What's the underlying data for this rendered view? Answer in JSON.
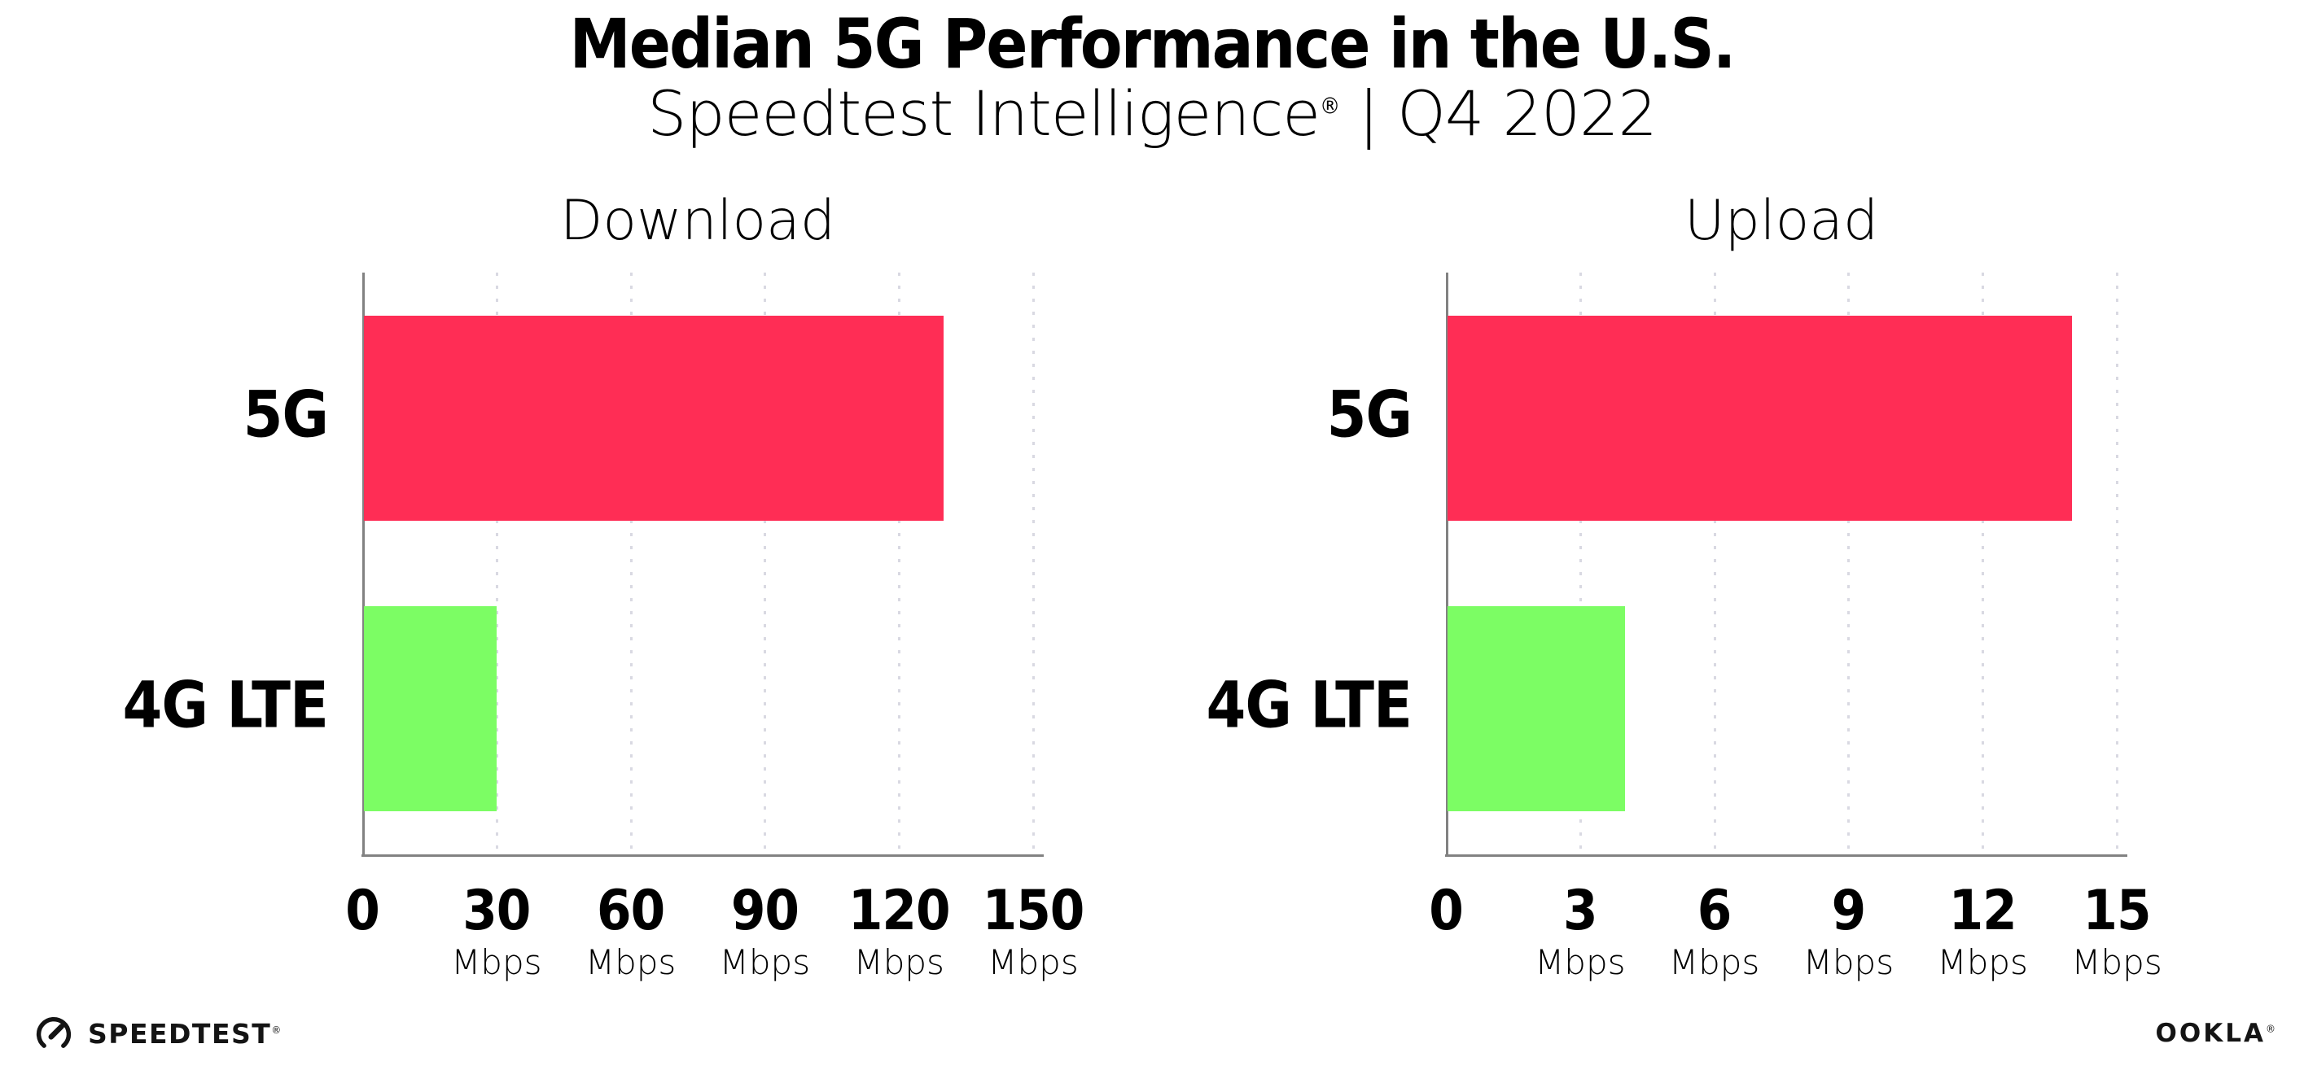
{
  "header": {
    "title": "Median 5G Performance in the U.S.",
    "subtitle_brand": "Speedtest Intelligence",
    "subtitle_reg": "®",
    "subtitle_sep": " | ",
    "subtitle_period": "Q4 2022"
  },
  "chart_data": [
    {
      "type": "bar",
      "orientation": "horizontal",
      "title": "Download",
      "categories": [
        "5G",
        "4G LTE"
      ],
      "values": [
        130,
        30
      ],
      "unit": "Mbps",
      "xlim": [
        0,
        150
      ],
      "xticks": [
        0,
        30,
        60,
        90,
        120,
        150
      ],
      "bar_colors": [
        "#ff2d55",
        "#7cfd64"
      ],
      "grid": "vertical-dotted",
      "legend": "none"
    },
    {
      "type": "bar",
      "orientation": "horizontal",
      "title": "Upload",
      "categories": [
        "5G",
        "4G LTE"
      ],
      "values": [
        14,
        4
      ],
      "unit": "Mbps",
      "xlim": [
        0,
        15
      ],
      "xticks": [
        0,
        3,
        6,
        9,
        12,
        15
      ],
      "bar_colors": [
        "#ff2d55",
        "#7cfd64"
      ],
      "grid": "vertical-dotted",
      "legend": "none"
    }
  ],
  "style": {
    "bar_5g_color": "#ff2d55",
    "bar_4g_color": "#7cfd64",
    "axis_color": "#828282",
    "grid_color": "#d9d9e2",
    "text_color": "#000000"
  },
  "footer": {
    "speedtest_icon": "speedtest-gauge-icon",
    "speedtest_label": "SPEEDTEST",
    "speedtest_reg": "®",
    "ookla_label": "OOKLA",
    "ookla_reg": "®"
  }
}
